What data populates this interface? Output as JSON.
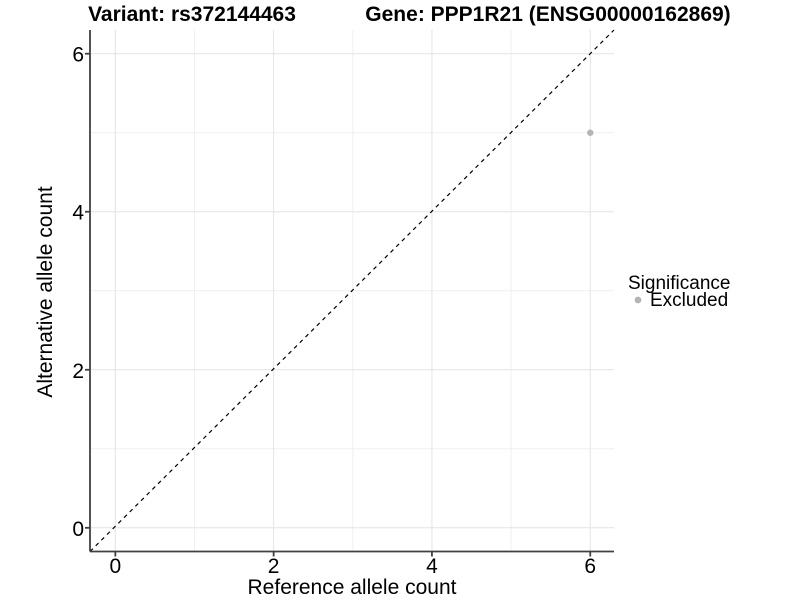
{
  "figure": {
    "title_left": "Variant: rs372144463",
    "title_right": "Gene: PPP1R21 (ENSG00000162869)"
  },
  "axes": {
    "x_label": "Reference allele count",
    "y_label": "Alternative allele count"
  },
  "legend": {
    "title": "Significance",
    "items": [
      {
        "label": "Excluded",
        "color": "#b4b4b4"
      }
    ]
  },
  "colors": {
    "background": "#ffffff",
    "point": "#b4b4b4",
    "grid_major": "#e4e4e4",
    "grid_minor": "#f0f0f0",
    "axis_line": "#404040",
    "identity_line": "#000000",
    "text": "#000000"
  },
  "chart_data": {
    "type": "scatter",
    "title": "Variant: rs372144463   Gene: PPP1R21 (ENSG00000162869)",
    "xlabel": "Reference allele count",
    "ylabel": "Alternative allele count",
    "series": [
      {
        "name": "Excluded",
        "color": "#b4b4b4",
        "points": [
          {
            "x": 6,
            "y": 5
          }
        ]
      }
    ],
    "identity_line": {
      "style": "dashed",
      "equation": "y = x",
      "color": "#000000"
    },
    "x_ticks": [
      0,
      2,
      4,
      6
    ],
    "y_ticks": [
      0,
      2,
      4,
      6
    ],
    "x_minor_ticks": [
      1,
      3,
      5
    ],
    "y_minor_ticks": [
      1,
      3,
      5
    ],
    "xlim": [
      -0.32,
      6.3
    ],
    "ylim": [
      -0.3,
      6.3
    ],
    "grid": true,
    "legend_position": "right"
  }
}
